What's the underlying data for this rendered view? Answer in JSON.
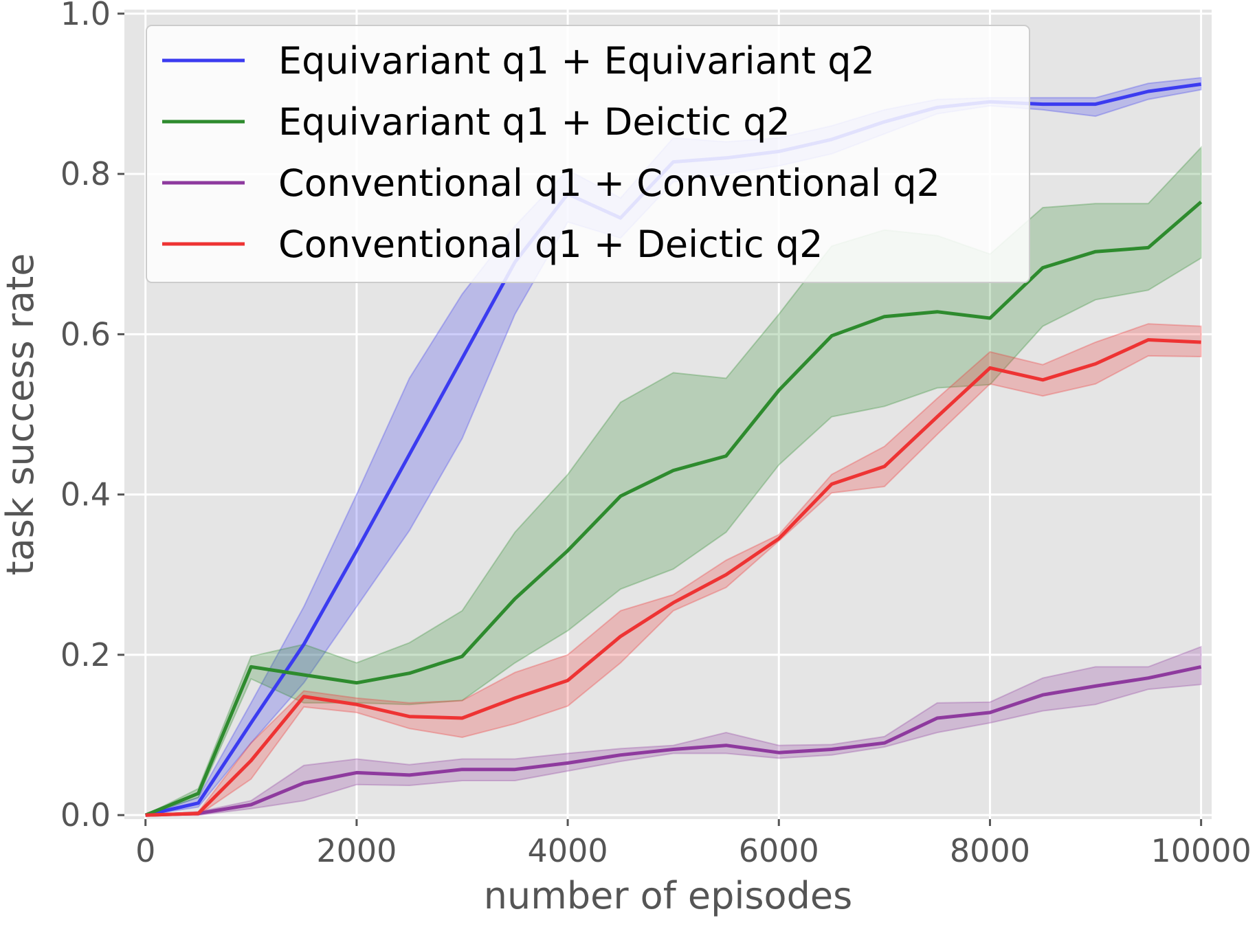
{
  "chart_data": {
    "type": "line",
    "title": "",
    "xlabel": "number of episodes",
    "ylabel": "task success rate",
    "xlim": [
      -200,
      10100
    ],
    "ylim": [
      -0.005,
      1.005
    ],
    "x_ticks": [
      0,
      2000,
      4000,
      6000,
      8000,
      10000
    ],
    "x_tick_labels": [
      "0",
      "2000",
      "4000",
      "6000",
      "8000",
      "10000"
    ],
    "y_ticks": [
      0.0,
      0.2,
      0.4,
      0.6,
      0.8,
      1.0
    ],
    "y_tick_labels": [
      "0.0",
      "0.2",
      "0.4",
      "0.6",
      "0.8",
      "1.0"
    ],
    "grid": true,
    "legend_position": "upper-left",
    "x": [
      0,
      500,
      1000,
      1500,
      2000,
      2500,
      3000,
      3500,
      4000,
      4500,
      5000,
      5500,
      6000,
      6500,
      7000,
      7500,
      8000,
      8500,
      9000,
      9500,
      10000
    ],
    "series": [
      {
        "name": "Equivariant q1 + Equivariant q2",
        "color": "#3b3bf0",
        "values": [
          0.0,
          0.015,
          0.115,
          0.213,
          0.33,
          0.45,
          0.57,
          0.69,
          0.775,
          0.745,
          0.815,
          0.82,
          0.828,
          0.843,
          0.865,
          0.883,
          0.89,
          0.887,
          0.887,
          0.903,
          0.912
        ],
        "lower": [
          0.0,
          0.01,
          0.09,
          0.165,
          0.26,
          0.355,
          0.47,
          0.625,
          0.74,
          0.72,
          0.79,
          0.8,
          0.81,
          0.825,
          0.85,
          0.875,
          0.885,
          0.88,
          0.872,
          0.893,
          0.905
        ],
        "upper": [
          0.0,
          0.022,
          0.14,
          0.26,
          0.4,
          0.545,
          0.65,
          0.735,
          0.805,
          0.77,
          0.845,
          0.84,
          0.845,
          0.86,
          0.88,
          0.893,
          0.895,
          0.895,
          0.895,
          0.913,
          0.92
        ]
      },
      {
        "name": "Equivariant q1 + Deictic q2",
        "color": "#2e8b2e",
        "values": [
          0.0,
          0.027,
          0.185,
          0.175,
          0.165,
          0.177,
          0.198,
          0.27,
          0.33,
          0.398,
          0.43,
          0.448,
          0.53,
          0.598,
          0.622,
          0.628,
          0.62,
          0.683,
          0.703,
          0.708,
          0.765
        ],
        "lower": [
          0.0,
          0.022,
          0.17,
          0.14,
          0.14,
          0.138,
          0.143,
          0.19,
          0.23,
          0.282,
          0.307,
          0.353,
          0.437,
          0.497,
          0.51,
          0.533,
          0.537,
          0.61,
          0.643,
          0.655,
          0.695
        ],
        "upper": [
          0.0,
          0.033,
          0.198,
          0.213,
          0.19,
          0.215,
          0.255,
          0.353,
          0.425,
          0.515,
          0.552,
          0.545,
          0.625,
          0.71,
          0.73,
          0.723,
          0.7,
          0.758,
          0.763,
          0.763,
          0.833
        ]
      },
      {
        "name": "Conventional q1 + Conventional q2",
        "color": "#8e3a9e",
        "values": [
          0.0,
          0.002,
          0.013,
          0.04,
          0.053,
          0.05,
          0.057,
          0.057,
          0.065,
          0.075,
          0.082,
          0.087,
          0.078,
          0.082,
          0.09,
          0.121,
          0.128,
          0.15,
          0.161,
          0.171,
          0.185
        ],
        "lower": [
          0.0,
          0.0,
          0.008,
          0.018,
          0.038,
          0.037,
          0.043,
          0.043,
          0.055,
          0.067,
          0.077,
          0.077,
          0.071,
          0.075,
          0.085,
          0.103,
          0.115,
          0.13,
          0.138,
          0.157,
          0.163
        ],
        "upper": [
          0.0,
          0.004,
          0.018,
          0.062,
          0.07,
          0.063,
          0.07,
          0.07,
          0.077,
          0.083,
          0.087,
          0.103,
          0.087,
          0.088,
          0.098,
          0.14,
          0.141,
          0.171,
          0.185,
          0.185,
          0.21
        ]
      },
      {
        "name": "Conventional q1 + Deictic q2",
        "color": "#ee3333",
        "values": [
          0.0,
          0.002,
          0.068,
          0.148,
          0.138,
          0.123,
          0.121,
          0.146,
          0.168,
          0.223,
          0.265,
          0.3,
          0.345,
          0.413,
          0.435,
          0.497,
          0.558,
          0.543,
          0.563,
          0.593,
          0.59
        ],
        "lower": [
          0.0,
          0.0,
          0.045,
          0.135,
          0.128,
          0.108,
          0.097,
          0.114,
          0.136,
          0.19,
          0.255,
          0.284,
          0.342,
          0.402,
          0.41,
          0.475,
          0.538,
          0.523,
          0.538,
          0.573,
          0.572
        ],
        "upper": [
          0.0,
          0.004,
          0.09,
          0.155,
          0.146,
          0.14,
          0.143,
          0.178,
          0.2,
          0.255,
          0.275,
          0.318,
          0.35,
          0.425,
          0.46,
          0.52,
          0.578,
          0.562,
          0.59,
          0.613,
          0.61
        ]
      }
    ]
  }
}
